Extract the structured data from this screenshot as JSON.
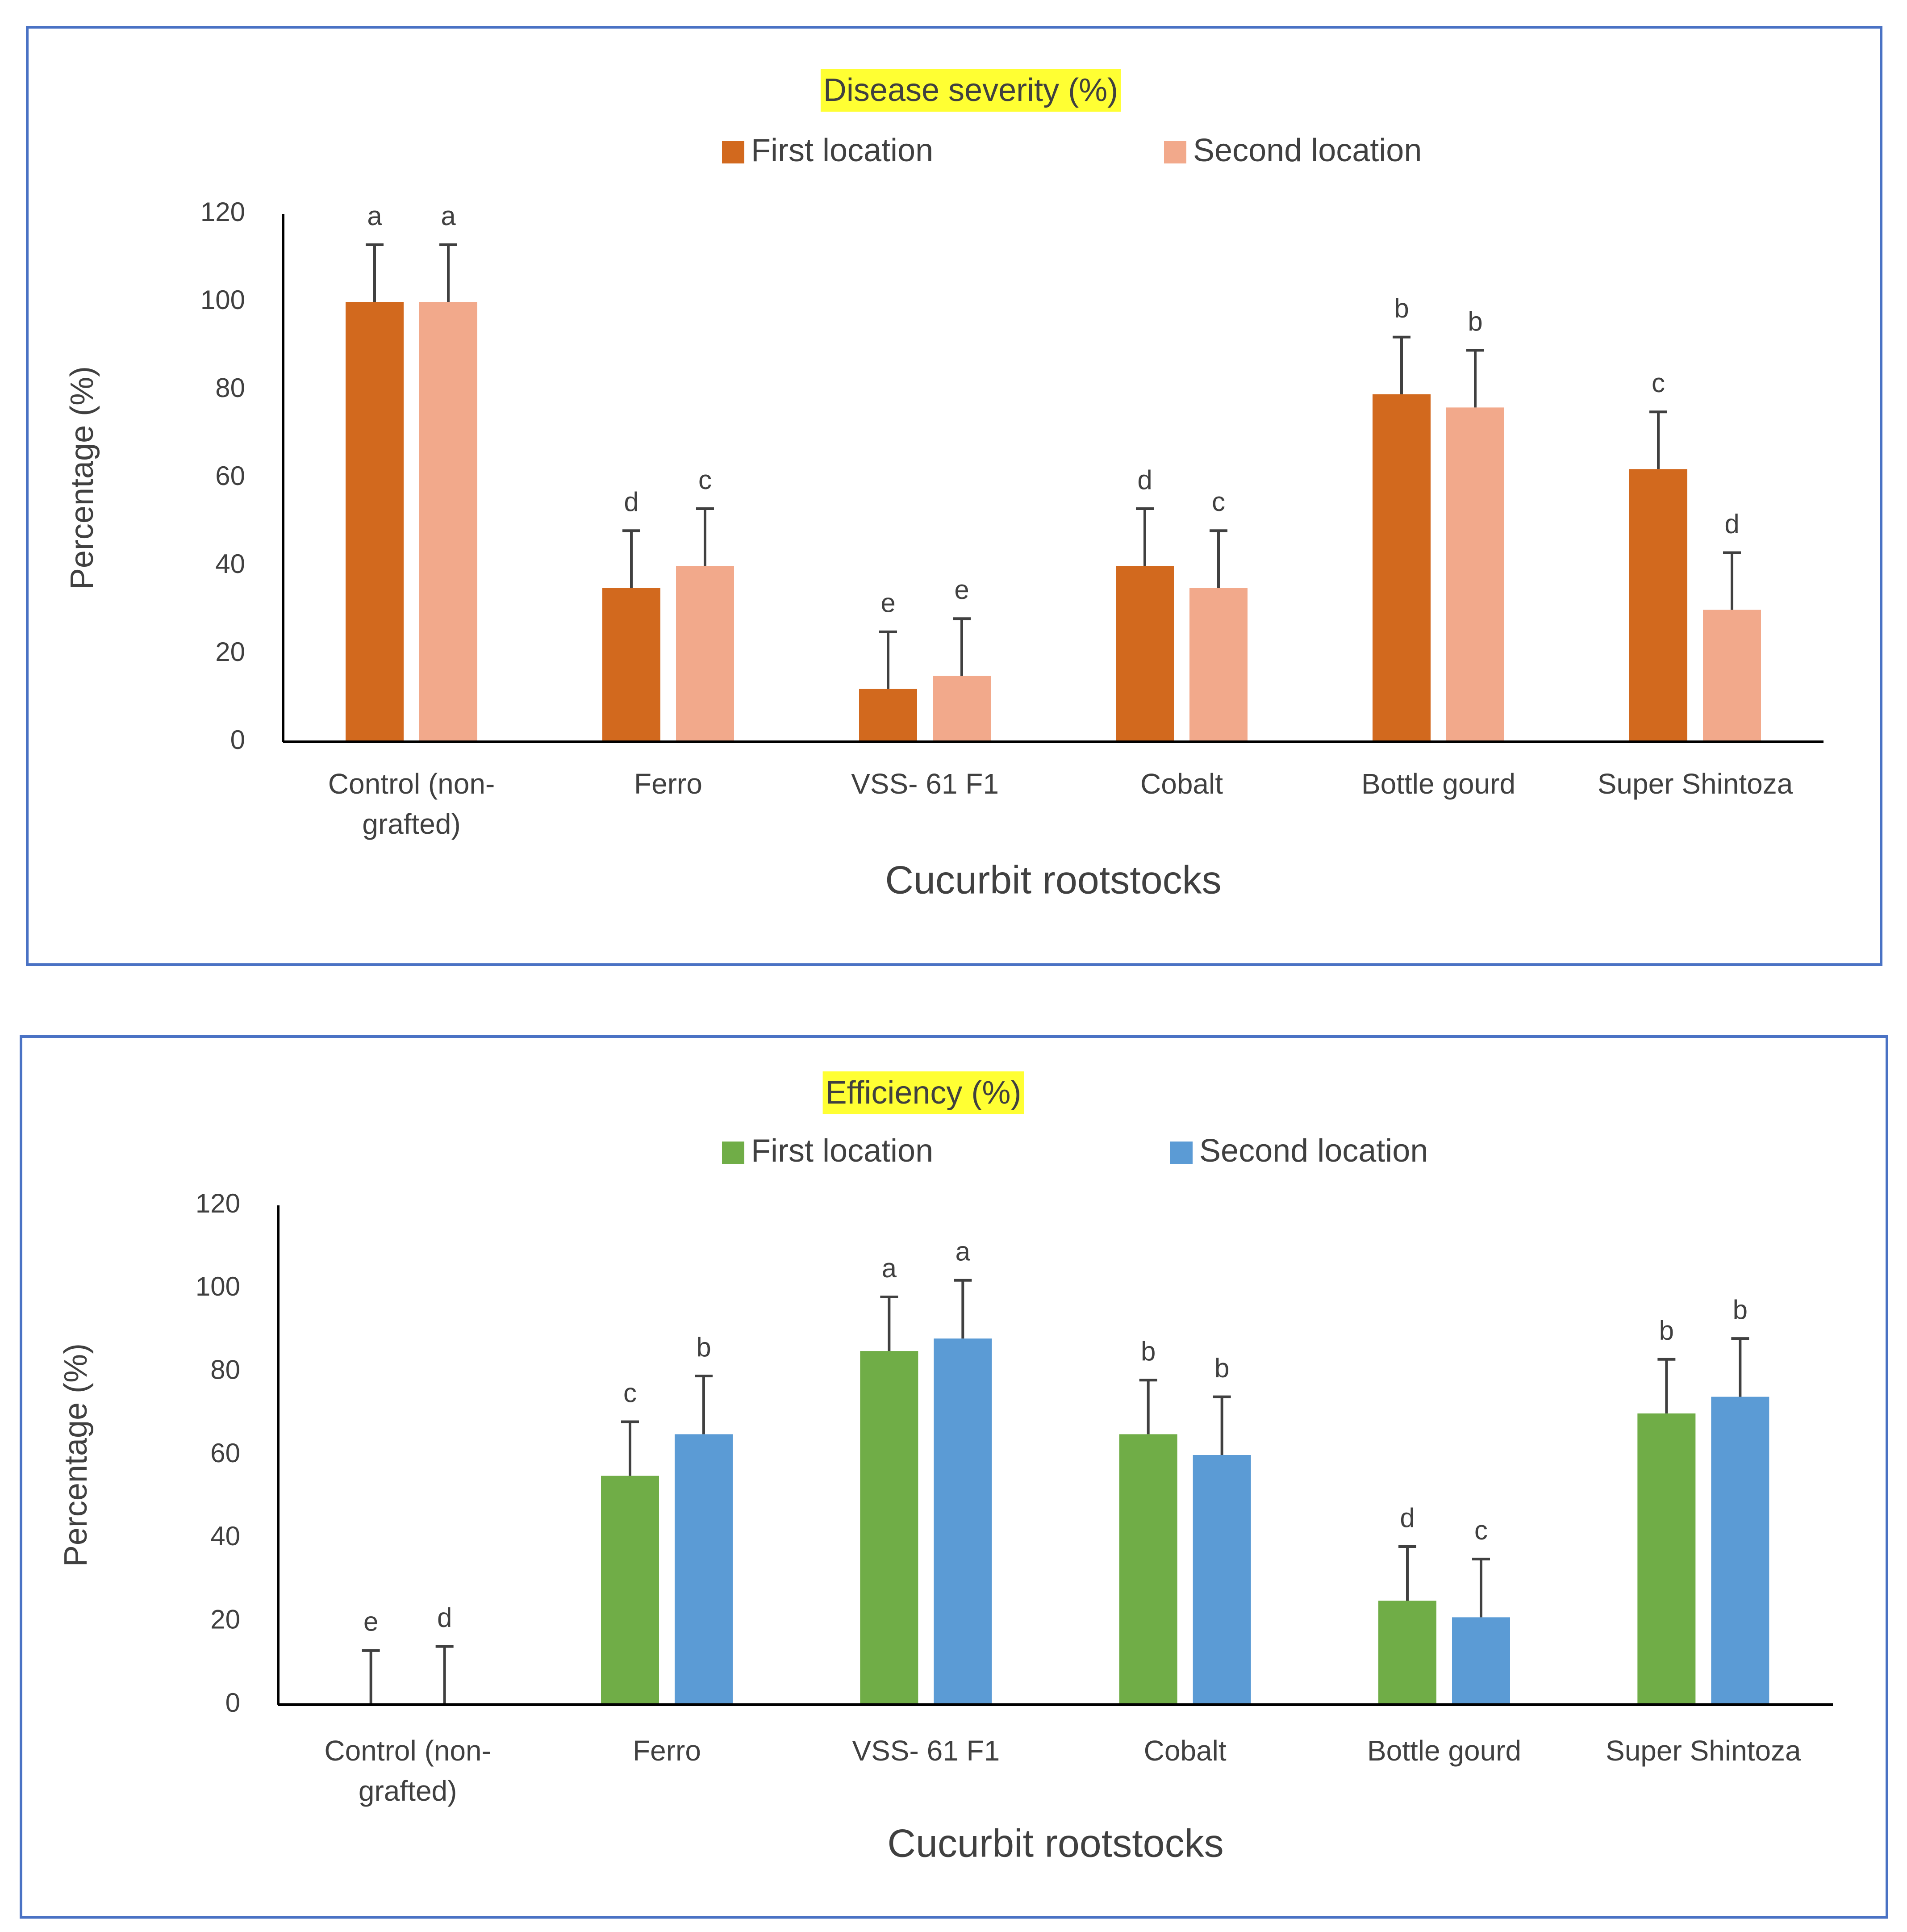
{
  "chart_data": [
    {
      "type": "bar",
      "title": "Disease severity (%)",
      "title_highlight": "#ffff33",
      "xlabel": "Cucurbit rootstocks",
      "ylabel": "Percentage (%)",
      "ylim": [
        0,
        120
      ],
      "yticks": [
        0,
        20,
        40,
        60,
        80,
        100,
        120
      ],
      "categories": [
        "Control (non-grafted)",
        "Ferro",
        "VSS- 61 F1",
        "Cobalt",
        "Bottle gourd",
        "Super Shintoza"
      ],
      "category_lines": [
        [
          "Control (non-",
          "grafted)"
        ],
        [
          "Ferro"
        ],
        [
          "VSS- 61 F1"
        ],
        [
          "Cobalt"
        ],
        [
          "Bottle gourd"
        ],
        [
          "Super Shintoza"
        ]
      ],
      "legend_position": "top",
      "series": [
        {
          "name": "First location",
          "color": "#d2691e",
          "values": [
            100,
            35,
            12,
            40,
            79,
            62
          ],
          "errors": [
            13,
            13,
            13,
            13,
            13,
            13
          ],
          "letters": [
            "a",
            "d",
            "e",
            "d",
            "b",
            "c"
          ]
        },
        {
          "name": "Second location",
          "color": "#f2a98b",
          "values": [
            100,
            40,
            15,
            35,
            76,
            30
          ],
          "errors": [
            13,
            13,
            13,
            13,
            13,
            13
          ],
          "letters": [
            "a",
            "c",
            "e",
            "c",
            "b",
            "d"
          ]
        }
      ]
    },
    {
      "type": "bar",
      "title": "Efficiency (%)",
      "title_highlight": "#ffff33",
      "xlabel": "Cucurbit rootstocks",
      "ylabel": "Percentage (%)",
      "ylim": [
        0,
        120
      ],
      "yticks": [
        0,
        20,
        40,
        60,
        80,
        100,
        120
      ],
      "categories": [
        "Control (non-grafted)",
        "Ferro",
        "VSS- 61 F1",
        "Cobalt",
        "Bottle gourd",
        "Super Shintoza"
      ],
      "category_lines": [
        [
          "Control (non-",
          "grafted)"
        ],
        [
          "Ferro"
        ],
        [
          "VSS- 61 F1"
        ],
        [
          "Cobalt"
        ],
        [
          "Bottle gourd"
        ],
        [
          "Super Shintoza"
        ]
      ],
      "legend_position": "top",
      "series": [
        {
          "name": "First location",
          "color": "#70ad47",
          "values": [
            0,
            55,
            85,
            65,
            25,
            70
          ],
          "errors": [
            13,
            13,
            13,
            13,
            13,
            13
          ],
          "letters": [
            "e",
            "c",
            "a",
            "b",
            "d",
            "b"
          ]
        },
        {
          "name": "Second location",
          "color": "#5b9bd5",
          "values": [
            0,
            65,
            88,
            60,
            21,
            74
          ],
          "errors": [
            14,
            14,
            14,
            14,
            14,
            14
          ],
          "letters": [
            "d",
            "b",
            "a",
            "b",
            "c",
            "b"
          ]
        }
      ]
    }
  ]
}
